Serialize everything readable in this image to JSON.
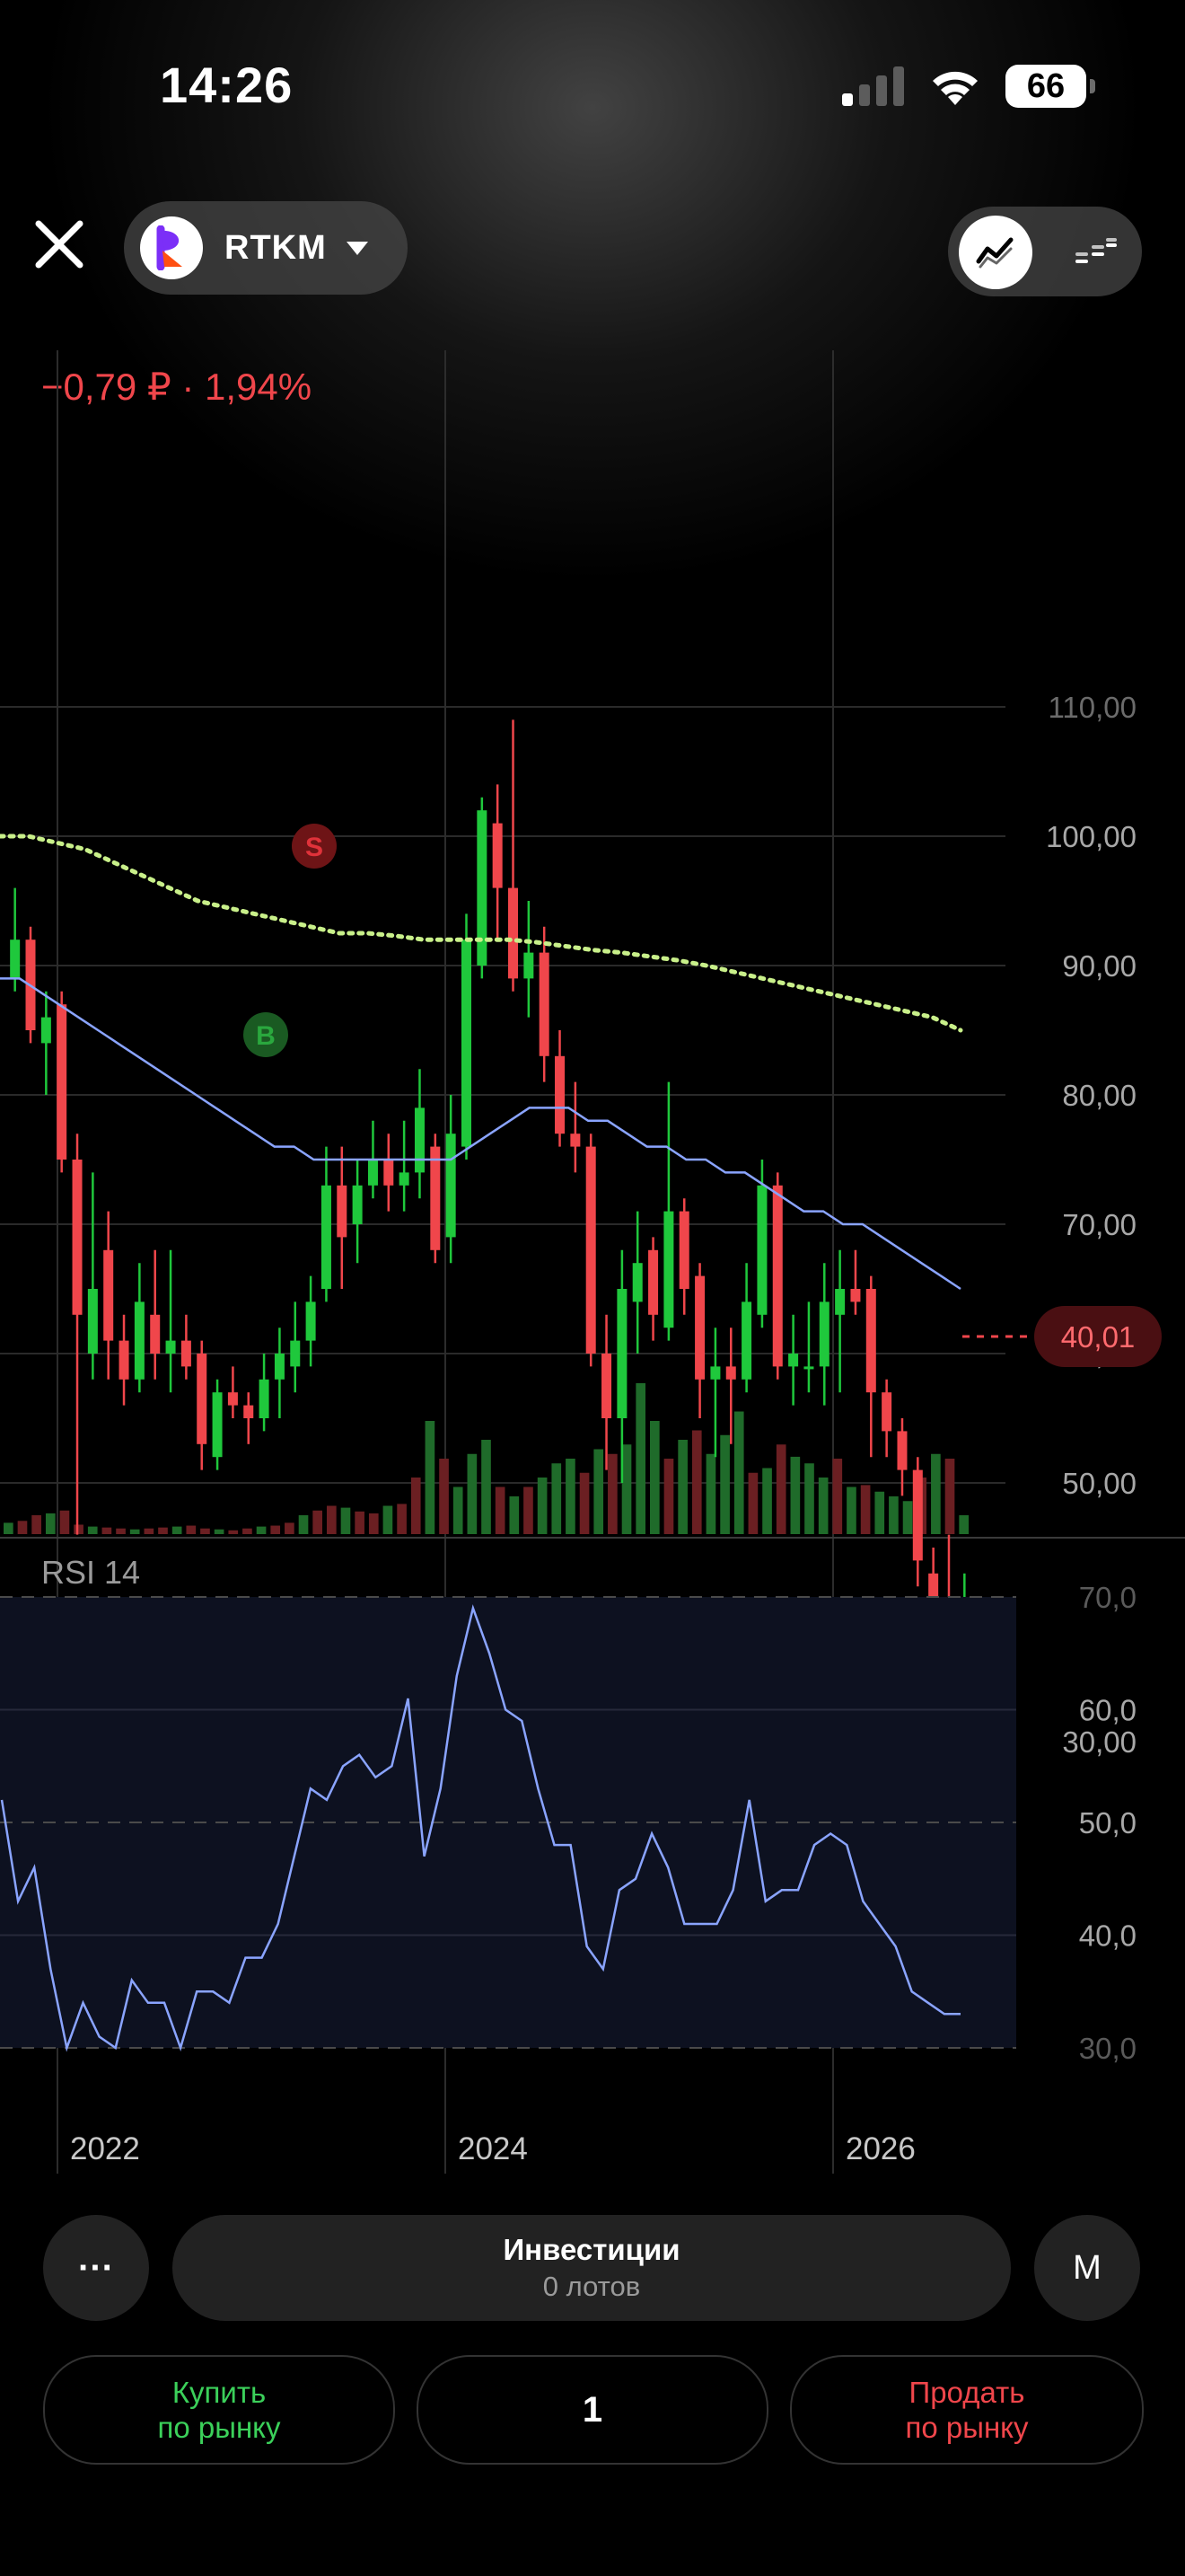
{
  "status_bar": {
    "time": "14:26",
    "battery": "66"
  },
  "header": {
    "ticker": "RTKM"
  },
  "price_change": "−0,79 ₽ · 1,94%",
  "chart_data": {
    "type": "candlestick",
    "y_axis_labels": [
      "110,00",
      "100,00",
      "90,00",
      "80,00",
      "70,00",
      "60,00",
      "50,00",
      "30,00"
    ],
    "current_price": "40,01",
    "x_axis_labels": [
      "2022",
      "2024",
      "2026"
    ],
    "signals": [
      {
        "label": "S",
        "color": "#e0323a",
        "index": 20
      },
      {
        "label": "B",
        "color": "#2aa83e",
        "index": 17
      }
    ],
    "candles": [
      {
        "o": 89,
        "c": 92,
        "h": 96,
        "l": 88
      },
      {
        "o": 92,
        "c": 85,
        "h": 93,
        "l": 84
      },
      {
        "o": 84,
        "c": 86,
        "h": 88,
        "l": 80
      },
      {
        "o": 87,
        "c": 75,
        "h": 88,
        "l": 74
      },
      {
        "o": 75,
        "c": 63,
        "h": 77,
        "l": 46
      },
      {
        "o": 60,
        "c": 65,
        "h": 74,
        "l": 58
      },
      {
        "o": 68,
        "c": 61,
        "h": 71,
        "l": 58
      },
      {
        "o": 61,
        "c": 58,
        "h": 63,
        "l": 56
      },
      {
        "o": 58,
        "c": 64,
        "h": 67,
        "l": 57
      },
      {
        "o": 63,
        "c": 60,
        "h": 68,
        "l": 58
      },
      {
        "o": 60,
        "c": 61,
        "h": 68,
        "l": 57
      },
      {
        "o": 61,
        "c": 59,
        "h": 63,
        "l": 58
      },
      {
        "o": 60,
        "c": 53,
        "h": 61,
        "l": 51
      },
      {
        "o": 52,
        "c": 57,
        "h": 58,
        "l": 51
      },
      {
        "o": 57,
        "c": 56,
        "h": 59,
        "l": 55
      },
      {
        "o": 56,
        "c": 55,
        "h": 57,
        "l": 53
      },
      {
        "o": 55,
        "c": 58,
        "h": 60,
        "l": 54
      },
      {
        "o": 58,
        "c": 60,
        "h": 62,
        "l": 55
      },
      {
        "o": 59,
        "c": 61,
        "h": 64,
        "l": 57
      },
      {
        "o": 61,
        "c": 64,
        "h": 66,
        "l": 59
      },
      {
        "o": 65,
        "c": 73,
        "h": 76,
        "l": 64
      },
      {
        "o": 73,
        "c": 69,
        "h": 76,
        "l": 65
      },
      {
        "o": 70,
        "c": 73,
        "h": 75,
        "l": 67
      },
      {
        "o": 73,
        "c": 75,
        "h": 78,
        "l": 72
      },
      {
        "o": 75,
        "c": 73,
        "h": 77,
        "l": 71
      },
      {
        "o": 73,
        "c": 74,
        "h": 78,
        "l": 71
      },
      {
        "o": 74,
        "c": 79,
        "h": 82,
        "l": 72
      },
      {
        "o": 76,
        "c": 68,
        "h": 77,
        "l": 67
      },
      {
        "o": 69,
        "c": 77,
        "h": 80,
        "l": 67
      },
      {
        "o": 76,
        "c": 92,
        "h": 94,
        "l": 75
      },
      {
        "o": 90,
        "c": 102,
        "h": 103,
        "l": 89
      },
      {
        "o": 101,
        "c": 96,
        "h": 104,
        "l": 92
      },
      {
        "o": 96,
        "c": 89,
        "h": 109,
        "l": 88
      },
      {
        "o": 89,
        "c": 91,
        "h": 95,
        "l": 86
      },
      {
        "o": 91,
        "c": 83,
        "h": 93,
        "l": 81
      },
      {
        "o": 83,
        "c": 77,
        "h": 85,
        "l": 76
      },
      {
        "o": 77,
        "c": 76,
        "h": 81,
        "l": 74
      },
      {
        "o": 76,
        "c": 60,
        "h": 77,
        "l": 59
      },
      {
        "o": 60,
        "c": 55,
        "h": 63,
        "l": 51
      },
      {
        "o": 55,
        "c": 65,
        "h": 68,
        "l": 50
      },
      {
        "o": 64,
        "c": 67,
        "h": 71,
        "l": 60
      },
      {
        "o": 68,
        "c": 63,
        "h": 69,
        "l": 61
      },
      {
        "o": 62,
        "c": 71,
        "h": 81,
        "l": 61
      },
      {
        "o": 71,
        "c": 65,
        "h": 72,
        "l": 63
      },
      {
        "o": 66,
        "c": 58,
        "h": 67,
        "l": 55
      },
      {
        "o": 58,
        "c": 59,
        "h": 62,
        "l": 52
      },
      {
        "o": 59,
        "c": 58,
        "h": 62,
        "l": 53
      },
      {
        "o": 58,
        "c": 64,
        "h": 67,
        "l": 57
      },
      {
        "o": 63,
        "c": 73,
        "h": 75,
        "l": 62
      },
      {
        "o": 73,
        "c": 59,
        "h": 74,
        "l": 58
      },
      {
        "o": 59,
        "c": 60,
        "h": 63,
        "l": 56
      },
      {
        "o": 59,
        "c": 59,
        "h": 64,
        "l": 57
      },
      {
        "o": 59,
        "c": 64,
        "h": 67,
        "l": 56
      },
      {
        "o": 63,
        "c": 65,
        "h": 68,
        "l": 57
      },
      {
        "o": 65,
        "c": 64,
        "h": 68,
        "l": 63
      },
      {
        "o": 65,
        "c": 57,
        "h": 66,
        "l": 52
      },
      {
        "o": 57,
        "c": 54,
        "h": 58,
        "l": 52
      },
      {
        "o": 54,
        "c": 51,
        "h": 55,
        "l": 49
      },
      {
        "o": 51,
        "c": 44,
        "h": 52,
        "l": 42
      },
      {
        "o": 43,
        "c": 41,
        "h": 45,
        "l": 33
      },
      {
        "o": 41,
        "c": 40,
        "h": 46,
        "l": 37
      },
      {
        "o": 40,
        "c": 40,
        "h": 43,
        "l": 39
      }
    ],
    "sma_fast": [
      89,
      89,
      88,
      87,
      86,
      85,
      84,
      83,
      82,
      81,
      80,
      79,
      78,
      77,
      76,
      76,
      75,
      75,
      75,
      75,
      75,
      75,
      75,
      75,
      76,
      77,
      78,
      79,
      79,
      79,
      78,
      78,
      77,
      76,
      76,
      75,
      75,
      74,
      74,
      73,
      72,
      71,
      71,
      70,
      70,
      69,
      68,
      67,
      66,
      65
    ],
    "sma_slow": [
      100,
      100,
      99.5,
      99,
      98,
      97,
      96,
      95,
      94.5,
      94,
      93.5,
      93,
      92.5,
      92.5,
      92.3,
      92,
      92,
      92,
      92,
      91.8,
      91.5,
      91.2,
      91,
      90.7,
      90.4,
      90,
      89.5,
      89,
      88.5,
      88,
      87.5,
      87,
      86.5,
      86,
      85
    ],
    "volumes": [
      12,
      14,
      20,
      22,
      25,
      10,
      8,
      7,
      6,
      5,
      6,
      7,
      8,
      9,
      6,
      5,
      4,
      6,
      8,
      9,
      12,
      20,
      25,
      30,
      28,
      24,
      22,
      30,
      32,
      60,
      120,
      80,
      50,
      85,
      100,
      50,
      40,
      50,
      60,
      75,
      80,
      65,
      90,
      85,
      95,
      160,
      120,
      80,
      100,
      110,
      85,
      105,
      130,
      65,
      70,
      95,
      82,
      75,
      60,
      80,
      50,
      52,
      45,
      40,
      35,
      60,
      85,
      80,
      20
    ],
    "rsi": {
      "title": "RSI 14",
      "y_axis_labels": [
        "70,0",
        "60,0",
        "50,0",
        "40,0",
        "30,0"
      ],
      "values": [
        52,
        43,
        46,
        37,
        30,
        34,
        31,
        30,
        36,
        34,
        34,
        30,
        35,
        35,
        34,
        38,
        38,
        41,
        47,
        53,
        52,
        55,
        56,
        54,
        55,
        61,
        47,
        53,
        63,
        69,
        65,
        60,
        59,
        53,
        48,
        48,
        39,
        37,
        44,
        45,
        49,
        46,
        41,
        41,
        41,
        44,
        52,
        43,
        44,
        44,
        48,
        49,
        48,
        43,
        41,
        39,
        35,
        34,
        33,
        33
      ]
    }
  },
  "bottom": {
    "more": "···",
    "portfolio_title": "Инвестиции",
    "portfolio_sub": "0 лотов",
    "mode": "М",
    "buy": [
      "Купить",
      "по рынку"
    ],
    "quantity": "1",
    "sell": [
      "Продать",
      "по рынку"
    ]
  }
}
